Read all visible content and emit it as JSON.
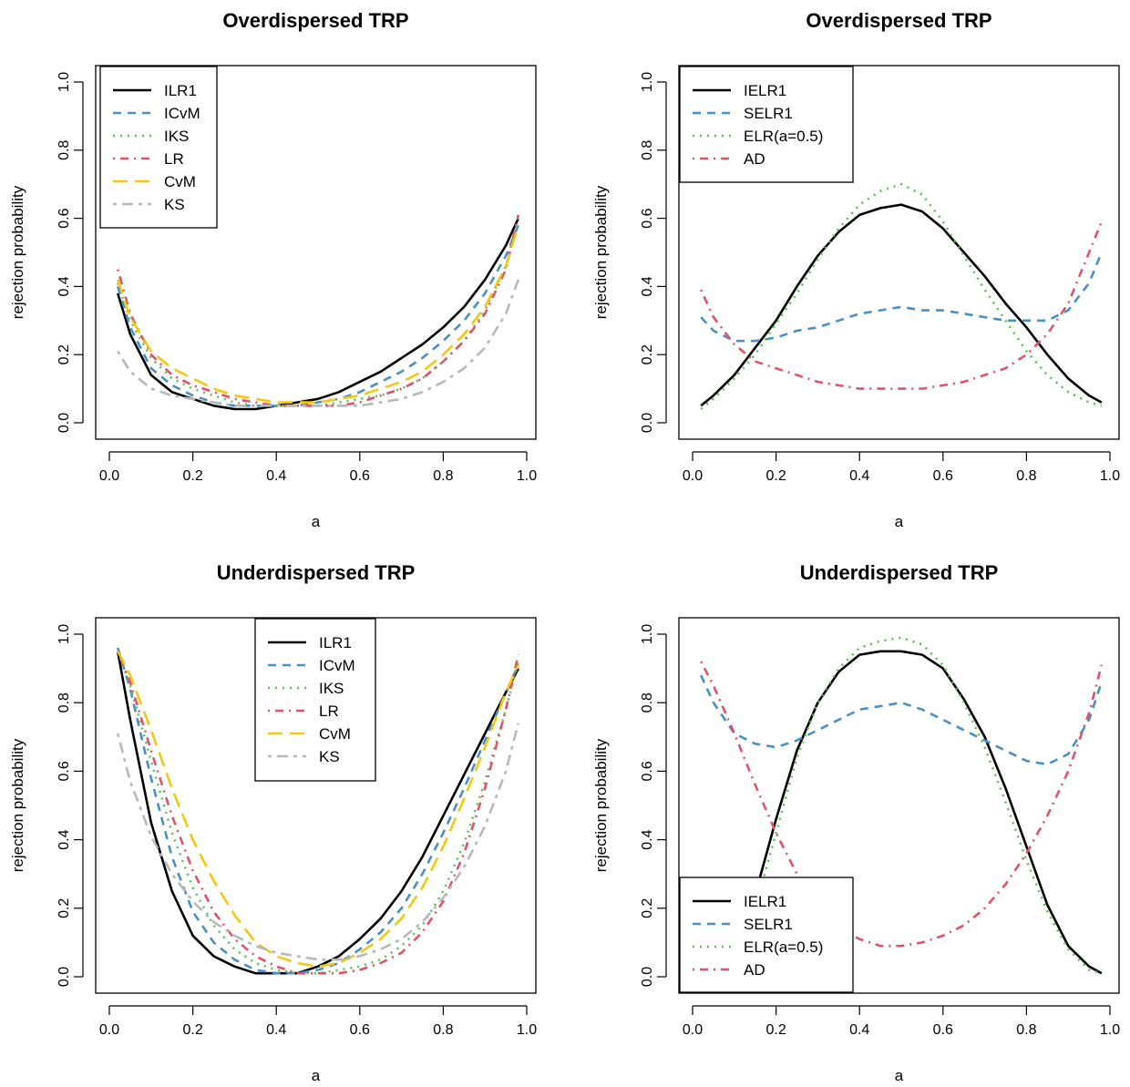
{
  "chart_data": [
    {
      "type": "line",
      "title": "Overdispersed TRP",
      "xlabel": "a",
      "ylabel": "rejection probability",
      "xlim": [
        0,
        1
      ],
      "ylim": [
        0,
        1
      ],
      "xticks": [
        "0.0",
        "0.2",
        "0.4",
        "0.6",
        "0.8",
        "1.0"
      ],
      "yticks": [
        "0.0",
        "0.2",
        "0.4",
        "0.6",
        "0.8",
        "1.0"
      ],
      "legend_position": "top-left",
      "x": [
        0.02,
        0.05,
        0.1,
        0.15,
        0.2,
        0.25,
        0.3,
        0.35,
        0.4,
        0.45,
        0.5,
        0.55,
        0.6,
        0.65,
        0.7,
        0.75,
        0.8,
        0.85,
        0.9,
        0.95,
        0.98
      ],
      "series": [
        {
          "name": "ILR1",
          "color": "#000000",
          "dash": "solid",
          "values": [
            0.38,
            0.26,
            0.14,
            0.09,
            0.07,
            0.05,
            0.04,
            0.04,
            0.05,
            0.06,
            0.07,
            0.09,
            0.12,
            0.15,
            0.19,
            0.23,
            0.28,
            0.34,
            0.42,
            0.52,
            0.6
          ]
        },
        {
          "name": "ICvM",
          "color": "#4a90c8",
          "dash": "dashed",
          "values": [
            0.4,
            0.28,
            0.16,
            0.11,
            0.08,
            0.06,
            0.05,
            0.05,
            0.05,
            0.05,
            0.06,
            0.07,
            0.09,
            0.12,
            0.15,
            0.19,
            0.24,
            0.3,
            0.38,
            0.49,
            0.58
          ]
        },
        {
          "name": "IKS",
          "color": "#5cc151",
          "dash": "dotted",
          "values": [
            0.41,
            0.3,
            0.19,
            0.13,
            0.1,
            0.08,
            0.06,
            0.05,
            0.05,
            0.05,
            0.05,
            0.06,
            0.07,
            0.08,
            0.1,
            0.13,
            0.18,
            0.24,
            0.33,
            0.46,
            0.6
          ]
        },
        {
          "name": "LR",
          "color": "#df536b",
          "dash": "dotdash",
          "values": [
            0.45,
            0.32,
            0.2,
            0.14,
            0.11,
            0.09,
            0.07,
            0.06,
            0.05,
            0.05,
            0.05,
            0.05,
            0.06,
            0.08,
            0.1,
            0.13,
            0.18,
            0.24,
            0.32,
            0.45,
            0.61
          ]
        },
        {
          "name": "CvM",
          "color": "#f5c710",
          "dash": "longdash",
          "values": [
            0.42,
            0.31,
            0.21,
            0.16,
            0.13,
            0.1,
            0.08,
            0.07,
            0.06,
            0.06,
            0.06,
            0.07,
            0.08,
            0.1,
            0.12,
            0.15,
            0.2,
            0.26,
            0.34,
            0.46,
            0.58
          ]
        },
        {
          "name": "KS",
          "color": "#b8b8b8",
          "dash": "twodash",
          "values": [
            0.21,
            0.15,
            0.1,
            0.08,
            0.07,
            0.06,
            0.05,
            0.05,
            0.05,
            0.05,
            0.05,
            0.05,
            0.05,
            0.06,
            0.07,
            0.09,
            0.12,
            0.16,
            0.22,
            0.32,
            0.42
          ]
        }
      ],
      "legend_entries": [
        "ILR1",
        "ICvM",
        "IKS",
        "LR",
        "CvM",
        "KS"
      ]
    },
    {
      "type": "line",
      "title": "Overdispersed TRP",
      "xlabel": "a",
      "ylabel": "rejection probability",
      "xlim": [
        0,
        1
      ],
      "ylim": [
        0,
        1
      ],
      "xticks": [
        "0.0",
        "0.2",
        "0.4",
        "0.6",
        "0.8",
        "1.0"
      ],
      "yticks": [
        "0.0",
        "0.2",
        "0.4",
        "0.6",
        "0.8",
        "1.0"
      ],
      "legend_position": "top-left",
      "x": [
        0.02,
        0.05,
        0.1,
        0.15,
        0.2,
        0.25,
        0.3,
        0.35,
        0.4,
        0.45,
        0.5,
        0.55,
        0.6,
        0.65,
        0.7,
        0.75,
        0.8,
        0.85,
        0.9,
        0.95,
        0.98
      ],
      "series": [
        {
          "name": "IELR1",
          "color": "#000000",
          "dash": "solid",
          "values": [
            0.05,
            0.08,
            0.14,
            0.22,
            0.3,
            0.4,
            0.49,
            0.56,
            0.61,
            0.63,
            0.64,
            0.62,
            0.57,
            0.5,
            0.43,
            0.35,
            0.28,
            0.2,
            0.13,
            0.08,
            0.06
          ]
        },
        {
          "name": "SELR1",
          "color": "#4a90c8",
          "dash": "dashed",
          "values": [
            0.31,
            0.27,
            0.24,
            0.24,
            0.25,
            0.27,
            0.28,
            0.3,
            0.32,
            0.33,
            0.34,
            0.33,
            0.33,
            0.32,
            0.31,
            0.3,
            0.3,
            0.3,
            0.33,
            0.41,
            0.5
          ]
        },
        {
          "name": "ELR(a=0.5)",
          "color": "#5cc151",
          "dash": "dotted",
          "values": [
            0.04,
            0.07,
            0.13,
            0.2,
            0.29,
            0.38,
            0.48,
            0.57,
            0.64,
            0.68,
            0.7,
            0.67,
            0.59,
            0.49,
            0.39,
            0.3,
            0.21,
            0.14,
            0.09,
            0.06,
            0.05
          ]
        },
        {
          "name": "AD",
          "color": "#df536b",
          "dash": "dotdash",
          "values": [
            0.39,
            0.31,
            0.23,
            0.18,
            0.16,
            0.14,
            0.12,
            0.11,
            0.1,
            0.1,
            0.1,
            0.1,
            0.11,
            0.12,
            0.14,
            0.16,
            0.2,
            0.26,
            0.35,
            0.5,
            0.59
          ]
        }
      ],
      "legend_entries": [
        "IELR1",
        "SELR1",
        "ELR(a=0.5)",
        "AD"
      ]
    },
    {
      "type": "line",
      "title": "Underdispersed TRP",
      "xlabel": "a",
      "ylabel": "rejection probability",
      "xlim": [
        0,
        1
      ],
      "ylim": [
        0,
        1
      ],
      "xticks": [
        "0.0",
        "0.2",
        "0.4",
        "0.6",
        "0.8",
        "1.0"
      ],
      "yticks": [
        "0.0",
        "0.2",
        "0.4",
        "0.6",
        "0.8",
        "1.0"
      ],
      "legend_position": "top-center",
      "x": [
        0.02,
        0.05,
        0.1,
        0.15,
        0.2,
        0.25,
        0.3,
        0.35,
        0.4,
        0.45,
        0.5,
        0.55,
        0.6,
        0.65,
        0.7,
        0.75,
        0.8,
        0.85,
        0.9,
        0.95,
        0.98
      ],
      "series": [
        {
          "name": "ILR1",
          "color": "#000000",
          "dash": "solid",
          "values": [
            0.95,
            0.75,
            0.45,
            0.25,
            0.12,
            0.06,
            0.03,
            0.01,
            0.01,
            0.01,
            0.03,
            0.06,
            0.11,
            0.17,
            0.25,
            0.35,
            0.47,
            0.59,
            0.71,
            0.83,
            0.9
          ]
        },
        {
          "name": "ICvM",
          "color": "#4a90c8",
          "dash": "dashed",
          "values": [
            0.96,
            0.84,
            0.58,
            0.35,
            0.19,
            0.1,
            0.05,
            0.02,
            0.01,
            0.01,
            0.02,
            0.04,
            0.08,
            0.13,
            0.2,
            0.3,
            0.42,
            0.55,
            0.69,
            0.83,
            0.91
          ]
        },
        {
          "name": "IKS",
          "color": "#5cc151",
          "dash": "dotted",
          "values": [
            0.95,
            0.85,
            0.63,
            0.42,
            0.26,
            0.15,
            0.08,
            0.04,
            0.02,
            0.01,
            0.01,
            0.02,
            0.03,
            0.05,
            0.09,
            0.15,
            0.25,
            0.39,
            0.57,
            0.78,
            0.92
          ]
        },
        {
          "name": "LR",
          "color": "#df536b",
          "dash": "dotdash",
          "values": [
            0.95,
            0.86,
            0.66,
            0.47,
            0.31,
            0.19,
            0.11,
            0.06,
            0.03,
            0.01,
            0.01,
            0.01,
            0.02,
            0.04,
            0.07,
            0.13,
            0.22,
            0.36,
            0.55,
            0.78,
            0.94
          ]
        },
        {
          "name": "CvM",
          "color": "#f5c710",
          "dash": "longdash",
          "values": [
            0.95,
            0.88,
            0.72,
            0.55,
            0.4,
            0.28,
            0.18,
            0.1,
            0.06,
            0.04,
            0.03,
            0.04,
            0.07,
            0.11,
            0.17,
            0.26,
            0.38,
            0.52,
            0.67,
            0.83,
            0.91
          ]
        },
        {
          "name": "KS",
          "color": "#b8b8b8",
          "dash": "twodash",
          "values": [
            0.71,
            0.57,
            0.41,
            0.3,
            0.22,
            0.16,
            0.12,
            0.09,
            0.07,
            0.06,
            0.05,
            0.05,
            0.06,
            0.08,
            0.11,
            0.16,
            0.23,
            0.32,
            0.44,
            0.6,
            0.74
          ]
        }
      ],
      "legend_entries": [
        "ILR1",
        "ICvM",
        "IKS",
        "LR",
        "CvM",
        "KS"
      ]
    },
    {
      "type": "line",
      "title": "Underdispersed TRP",
      "xlabel": "a",
      "ylabel": "rejection probability",
      "xlim": [
        0,
        1
      ],
      "ylim": [
        0,
        1
      ],
      "xticks": [
        "0.0",
        "0.2",
        "0.4",
        "0.6",
        "0.8",
        "1.0"
      ],
      "yticks": [
        "0.0",
        "0.2",
        "0.4",
        "0.6",
        "0.8",
        "1.0"
      ],
      "legend_position": "bottom-left",
      "x": [
        0.02,
        0.05,
        0.1,
        0.15,
        0.2,
        0.25,
        0.3,
        0.35,
        0.4,
        0.45,
        0.5,
        0.55,
        0.6,
        0.65,
        0.7,
        0.75,
        0.8,
        0.85,
        0.9,
        0.95,
        0.98
      ],
      "series": [
        {
          "name": "IELR1",
          "color": "#000000",
          "dash": "solid",
          "values": [
            0.0,
            0.0,
            0.0,
            0.24,
            0.46,
            0.66,
            0.8,
            0.89,
            0.94,
            0.95,
            0.95,
            0.94,
            0.9,
            0.81,
            0.7,
            0.55,
            0.38,
            0.21,
            0.09,
            0.03,
            0.01
          ]
        },
        {
          "name": "SELR1",
          "color": "#4a90c8",
          "dash": "dashed",
          "values": [
            0.88,
            0.8,
            0.71,
            0.68,
            0.67,
            0.69,
            0.72,
            0.75,
            0.78,
            0.79,
            0.8,
            0.78,
            0.75,
            0.72,
            0.69,
            0.66,
            0.63,
            0.62,
            0.65,
            0.75,
            0.86
          ]
        },
        {
          "name": "ELR(a=0.5)",
          "color": "#5cc151",
          "dash": "dotted",
          "values": [
            0.0,
            0.0,
            0.0,
            0.2,
            0.42,
            0.64,
            0.8,
            0.9,
            0.96,
            0.98,
            0.99,
            0.97,
            0.91,
            0.8,
            0.67,
            0.51,
            0.34,
            0.19,
            0.08,
            0.02,
            0.01
          ]
        },
        {
          "name": "AD",
          "color": "#df536b",
          "dash": "dotdash",
          "values": [
            0.92,
            0.85,
            0.71,
            0.56,
            0.42,
            0.3,
            0.2,
            0.14,
            0.11,
            0.09,
            0.09,
            0.1,
            0.12,
            0.15,
            0.2,
            0.27,
            0.36,
            0.47,
            0.6,
            0.77,
            0.91
          ]
        }
      ],
      "legend_entries": [
        "IELR1",
        "SELR1",
        "ELR(a=0.5)",
        "AD"
      ]
    }
  ]
}
